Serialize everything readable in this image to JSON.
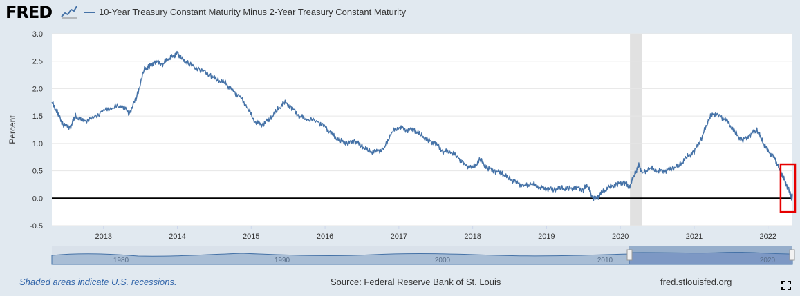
{
  "header": {
    "logo": "FRED",
    "legend_label": "10-Year Treasury Constant Maturity Minus 2-Year Treasury Constant Maturity",
    "series_color": "#4572a7"
  },
  "chart_data": {
    "type": "line",
    "ylabel": "Percent",
    "ylim": [
      -0.5,
      3.0
    ],
    "yticks": [
      "3.0",
      "2.5",
      "2.0",
      "1.5",
      "1.0",
      "0.5",
      "0.0",
      "-0.5"
    ],
    "xlim": [
      2012.3,
      2022.33
    ],
    "xticks": [
      "2013",
      "2014",
      "2015",
      "2016",
      "2017",
      "2018",
      "2019",
      "2020",
      "2021",
      "2022"
    ],
    "recession": {
      "start": 2020.13,
      "end": 2020.29,
      "color": "#e1e1e1"
    },
    "zero_line": 0,
    "highlight_box": {
      "x_start": 2022.17,
      "x_end": 2022.33,
      "y_low": -0.25,
      "y_high": 0.62,
      "color": "#e60000"
    },
    "series": [
      {
        "name": "10-Year Treasury Constant Maturity Minus 2-Year Treasury Constant Maturity",
        "points": [
          [
            2012.3,
            1.75
          ],
          [
            2012.38,
            1.55
          ],
          [
            2012.45,
            1.35
          ],
          [
            2012.55,
            1.3
          ],
          [
            2012.62,
            1.5
          ],
          [
            2012.72,
            1.4
          ],
          [
            2012.85,
            1.45
          ],
          [
            2013.0,
            1.6
          ],
          [
            2013.12,
            1.65
          ],
          [
            2013.25,
            1.7
          ],
          [
            2013.35,
            1.55
          ],
          [
            2013.45,
            1.85
          ],
          [
            2013.55,
            2.35
          ],
          [
            2013.62,
            2.4
          ],
          [
            2013.7,
            2.5
          ],
          [
            2013.8,
            2.45
          ],
          [
            2013.88,
            2.55
          ],
          [
            2013.95,
            2.6
          ],
          [
            2014.0,
            2.65
          ],
          [
            2014.05,
            2.55
          ],
          [
            2014.15,
            2.45
          ],
          [
            2014.3,
            2.35
          ],
          [
            2014.45,
            2.25
          ],
          [
            2014.55,
            2.15
          ],
          [
            2014.65,
            2.1
          ],
          [
            2014.75,
            1.95
          ],
          [
            2014.85,
            1.85
          ],
          [
            2014.95,
            1.65
          ],
          [
            2015.05,
            1.4
          ],
          [
            2015.15,
            1.35
          ],
          [
            2015.25,
            1.45
          ],
          [
            2015.35,
            1.6
          ],
          [
            2015.45,
            1.75
          ],
          [
            2015.55,
            1.65
          ],
          [
            2015.65,
            1.5
          ],
          [
            2015.75,
            1.45
          ],
          [
            2015.9,
            1.4
          ],
          [
            2016.0,
            1.3
          ],
          [
            2016.1,
            1.15
          ],
          [
            2016.2,
            1.05
          ],
          [
            2016.3,
            1.0
          ],
          [
            2016.4,
            1.05
          ],
          [
            2016.5,
            0.95
          ],
          [
            2016.6,
            0.85
          ],
          [
            2016.7,
            0.85
          ],
          [
            2016.8,
            0.9
          ],
          [
            2016.9,
            1.2
          ],
          [
            2017.0,
            1.3
          ],
          [
            2017.1,
            1.25
          ],
          [
            2017.2,
            1.25
          ],
          [
            2017.3,
            1.15
          ],
          [
            2017.4,
            1.05
          ],
          [
            2017.5,
            1.0
          ],
          [
            2017.6,
            0.85
          ],
          [
            2017.7,
            0.85
          ],
          [
            2017.8,
            0.75
          ],
          [
            2017.9,
            0.6
          ],
          [
            2018.0,
            0.55
          ],
          [
            2018.1,
            0.7
          ],
          [
            2018.2,
            0.55
          ],
          [
            2018.3,
            0.5
          ],
          [
            2018.4,
            0.45
          ],
          [
            2018.5,
            0.35
          ],
          [
            2018.6,
            0.28
          ],
          [
            2018.7,
            0.22
          ],
          [
            2018.8,
            0.27
          ],
          [
            2018.9,
            0.2
          ],
          [
            2019.0,
            0.18
          ],
          [
            2019.1,
            0.16
          ],
          [
            2019.2,
            0.18
          ],
          [
            2019.3,
            0.17
          ],
          [
            2019.4,
            0.2
          ],
          [
            2019.5,
            0.15
          ],
          [
            2019.55,
            0.25
          ],
          [
            2019.62,
            0.02
          ],
          [
            2019.68,
            0.0
          ],
          [
            2019.75,
            0.1
          ],
          [
            2019.85,
            0.2
          ],
          [
            2019.95,
            0.25
          ],
          [
            2020.05,
            0.3
          ],
          [
            2020.12,
            0.2
          ],
          [
            2020.2,
            0.45
          ],
          [
            2020.25,
            0.6
          ],
          [
            2020.3,
            0.45
          ],
          [
            2020.4,
            0.55
          ],
          [
            2020.5,
            0.5
          ],
          [
            2020.6,
            0.5
          ],
          [
            2020.7,
            0.55
          ],
          [
            2020.8,
            0.6
          ],
          [
            2020.9,
            0.75
          ],
          [
            2021.0,
            0.85
          ],
          [
            2021.1,
            1.1
          ],
          [
            2021.2,
            1.45
          ],
          [
            2021.25,
            1.55
          ],
          [
            2021.35,
            1.5
          ],
          [
            2021.45,
            1.4
          ],
          [
            2021.55,
            1.2
          ],
          [
            2021.65,
            1.05
          ],
          [
            2021.75,
            1.15
          ],
          [
            2021.85,
            1.25
          ],
          [
            2021.92,
            1.05
          ],
          [
            2022.0,
            0.85
          ],
          [
            2022.08,
            0.75
          ],
          [
            2022.15,
            0.55
          ],
          [
            2022.2,
            0.4
          ],
          [
            2022.25,
            0.25
          ],
          [
            2022.3,
            0.1
          ],
          [
            2022.32,
            -0.02
          ],
          [
            2022.33,
            0.05
          ]
        ]
      }
    ]
  },
  "navigator": {
    "labels": [
      "1980",
      "1990",
      "2000",
      "2010",
      "2020"
    ],
    "selection_start": 0.905,
    "selection_end": 0.995
  },
  "footer": {
    "recession_note": "Shaded areas indicate U.S. recessions.",
    "source": "Source: Federal Reserve Bank of St. Louis",
    "site": "fred.stlouisfed.org",
    "fullscreen_icon": "expand-icon"
  }
}
